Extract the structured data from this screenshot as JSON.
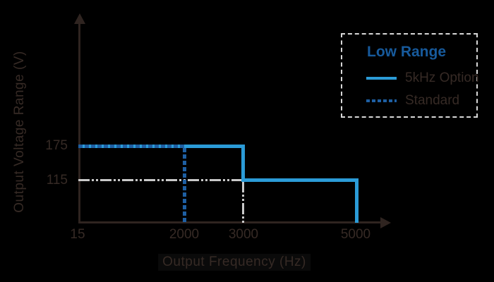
{
  "chart": {
    "y_axis_label": "Output Voltage Range (V)",
    "x_axis_label": "Output Frequency (Hz)",
    "y_ticks": [
      "175",
      "115"
    ],
    "x_ticks": [
      "15",
      "2000",
      "3000",
      "5000"
    ],
    "legend": {
      "title": "Low Range",
      "items": [
        {
          "label": "5kHz Option",
          "style": "solid"
        },
        {
          "label": "Standard",
          "style": "dashed"
        }
      ]
    }
  },
  "chart_data": {
    "type": "line",
    "subtype": "step",
    "title": "",
    "xlabel": "Output Frequency (Hz)",
    "ylabel": "Output Voltage Range (V)",
    "x_ticks": [
      15,
      2000,
      3000,
      5000
    ],
    "y_ticks": [
      115,
      175
    ],
    "xlim": [
      15,
      5500
    ],
    "ylim": [
      0,
      210
    ],
    "grid": false,
    "legend_title": "Low Range",
    "legend_position": "top-right",
    "series": [
      {
        "name": "5kHz Option",
        "style": "solid",
        "color": "#2b9bd7",
        "points": [
          [
            15,
            175
          ],
          [
            3000,
            175
          ],
          [
            3000,
            115
          ],
          [
            5000,
            115
          ],
          [
            5000,
            0
          ]
        ]
      },
      {
        "name": "Standard",
        "style": "dashed",
        "color": "#1e5fa3",
        "points": [
          [
            15,
            175
          ],
          [
            2000,
            175
          ],
          [
            2000,
            0
          ]
        ]
      }
    ],
    "reference_lines": [
      {
        "name": "115V-at-3000Hz-guide",
        "style": "dash-dot-dot",
        "color": "#c9c9c9",
        "points": [
          [
            15,
            115
          ],
          [
            3000,
            115
          ],
          [
            3000,
            0
          ]
        ]
      }
    ],
    "colors": {
      "background": "#000000",
      "axis_and_text": "#362a25",
      "solid_series": "#2b9bd7",
      "dashed_series": "#1e5fa3",
      "reference": "#c9c9c9",
      "legend_title": "#175a9c",
      "legend_border": "#d8d8d8"
    }
  }
}
